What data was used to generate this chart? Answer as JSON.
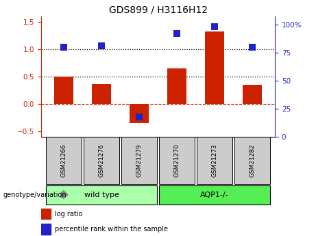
{
  "title": "GDS899 / H3116H12",
  "categories": [
    "GSM21266",
    "GSM21276",
    "GSM21279",
    "GSM21270",
    "GSM21273",
    "GSM21282"
  ],
  "log_ratio": [
    0.5,
    0.37,
    -0.35,
    0.65,
    1.33,
    0.35
  ],
  "percentile_rank": [
    80,
    81,
    18,
    92,
    98,
    80
  ],
  "bar_color": "#cc2200",
  "dot_color": "#2222cc",
  "ylim_left": [
    -0.6,
    1.6
  ],
  "ylim_right": [
    0,
    107
  ],
  "group_info": [
    {
      "label": "wild type",
      "start": 0,
      "end": 3,
      "color": "#aaffaa"
    },
    {
      "label": "AQP1-/-",
      "start": 3,
      "end": 6,
      "color": "#55ee55"
    }
  ],
  "genotype_label": "genotype/variation",
  "legend_items": [
    "log ratio",
    "percentile rank within the sample"
  ],
  "legend_colors": [
    "#cc2200",
    "#2222cc"
  ],
  "right_axis_color": "#2222cc",
  "left_axis_color": "#cc2200",
  "bar_width": 0.5,
  "dot_size": 50,
  "left_yticks": [
    -0.5,
    0.0,
    0.5,
    1.0,
    1.5
  ],
  "right_yticks": [
    0,
    25,
    50,
    75,
    100
  ],
  "right_yticklabels": [
    "0",
    "25",
    "50",
    "75",
    "100%"
  ],
  "label_box_color": "#cccccc",
  "n_categories": 6
}
